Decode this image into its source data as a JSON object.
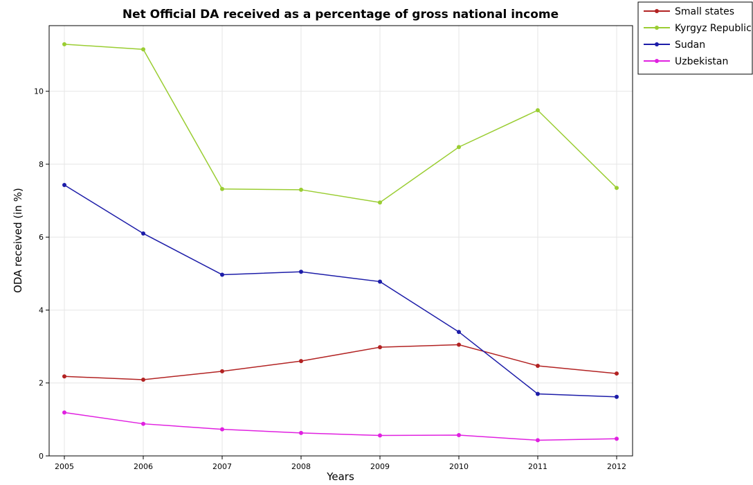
{
  "chart_data": {
    "type": "line",
    "title": "Net Official DA received as a percentage of gross national income",
    "xlabel": "Years",
    "ylabel": "ODA received (in %)",
    "x": [
      "2005",
      "2006",
      "2007",
      "2008",
      "2009",
      "2010",
      "2011",
      "2012"
    ],
    "yticks": [
      "0",
      "2",
      "4",
      "6",
      "8",
      "10"
    ],
    "ylim": [
      0,
      11.8
    ],
    "grid": true,
    "legend_position": "top-right",
    "series": [
      {
        "name": "Small states",
        "color": "#b22222",
        "values": [
          2.18,
          2.09,
          2.32,
          2.6,
          2.98,
          3.05,
          2.47,
          2.26
        ]
      },
      {
        "name": "Kyrgyz Republic",
        "color": "#9acd32",
        "values": [
          11.29,
          11.15,
          7.32,
          7.3,
          6.95,
          8.47,
          9.48,
          7.35
        ]
      },
      {
        "name": "Sudan",
        "color": "#1c1ca8",
        "values": [
          7.43,
          6.1,
          4.97,
          5.05,
          4.78,
          3.4,
          1.7,
          1.62
        ]
      },
      {
        "name": "Uzbekistan",
        "color": "#e020e0",
        "values": [
          1.19,
          0.88,
          0.73,
          0.63,
          0.56,
          0.57,
          0.43,
          0.47
        ]
      }
    ]
  }
}
